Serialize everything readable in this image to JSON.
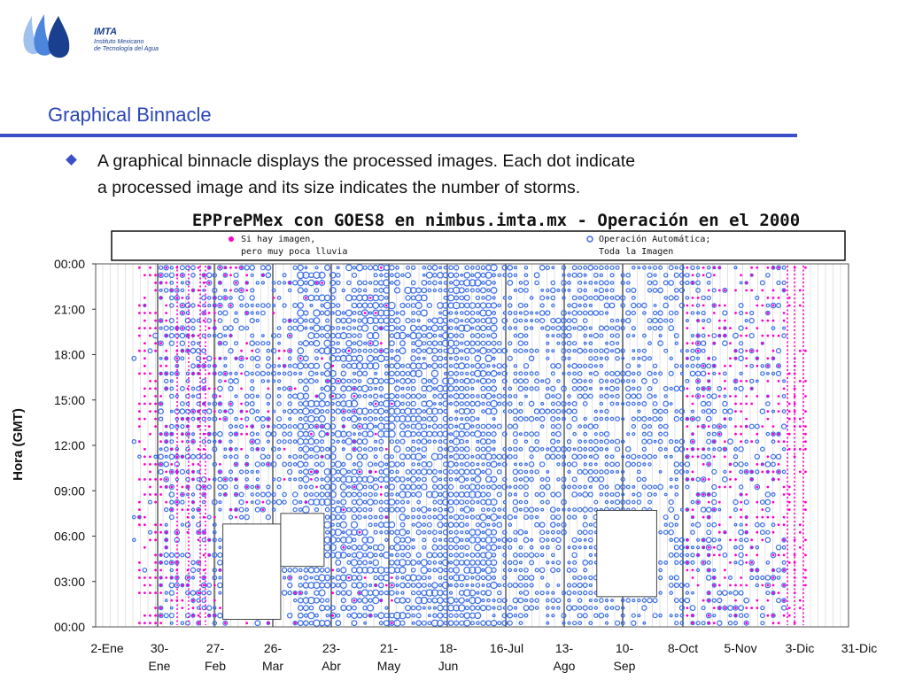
{
  "logo": {
    "name": "IMTA",
    "subtitle_line1": "Instituto Mexicano",
    "subtitle_line2": "de Tecnología del Agua",
    "color": "#1a3f8f"
  },
  "slide": {
    "title": "Graphical Binnacle",
    "bullet_line1": "A graphical binnacle displays the processed images. Each dot indicate",
    "bullet_line2": "a processed image and its size indicates the number of storms.",
    "accent_color": "#3b4fc9"
  },
  "chart_data": {
    "type": "scatter",
    "title": "EPPrePMex con GOES8 en nimbus.imta.mx - Operación en el 2000",
    "ylabel": "Hora (GMT)",
    "xlabel": "",
    "y_ticks": [
      "00:00",
      "21:00",
      "18:00",
      "15:00",
      "12:00",
      "09:00",
      "06:00",
      "03:00",
      "00:00"
    ],
    "y_range_hours": [
      0,
      24
    ],
    "x_ticks": [
      {
        "line1": "2-Ene",
        "line2": ""
      },
      {
        "line1": "30-",
        "line2": "Ene"
      },
      {
        "line1": "27-",
        "line2": "Feb"
      },
      {
        "line1": "26-",
        "line2": "Mar"
      },
      {
        "line1": "23-",
        "line2": "Abr"
      },
      {
        "line1": "21-",
        "line2": "May"
      },
      {
        "line1": "18-",
        "line2": "Jun"
      },
      {
        "line1": "16-Jul",
        "line2": ""
      },
      {
        "line1": "13-",
        "line2": "Ago"
      },
      {
        "line1": "10-",
        "line2": "Sep"
      },
      {
        "line1": "8-Oct",
        "line2": ""
      },
      {
        "line1": "5-Nov",
        "line2": ""
      },
      {
        "line1": "3-Dic",
        "line2": ""
      },
      {
        "line1": "31-Dic",
        "line2": ""
      }
    ],
    "x_range_days": [
      0,
      364
    ],
    "grid": "vertical",
    "legend": {
      "placement": "top",
      "entries": [
        {
          "line1": "Si hay imagen,",
          "line2": "pero muy poca lluvia",
          "color": "#ff00cc",
          "marker": "filled-dot"
        },
        {
          "line1": "Operación Automática;",
          "line2": "Toda la Imagen",
          "color": "#3a6ee8",
          "marker": "hollow-circle"
        }
      ]
    },
    "series": [
      {
        "marker": "hollow-circle",
        "color": "#3a6ee8",
        "density_periods_days": [
          {
            "start": 10,
            "end": 24,
            "density": 0.05
          },
          {
            "start": 24,
            "end": 91,
            "density": 0.55
          },
          {
            "start": 91,
            "end": 160,
            "density": 0.82
          },
          {
            "start": 160,
            "end": 175,
            "density": 0.95
          },
          {
            "start": 175,
            "end": 189,
            "density": 0.93
          },
          {
            "start": 189,
            "end": 224,
            "density": 0.62
          },
          {
            "start": 224,
            "end": 248,
            "density": 0.7
          },
          {
            "start": 248,
            "end": 296,
            "density": 0.55
          },
          {
            "start": 296,
            "end": 328,
            "density": 0.3
          }
        ]
      },
      {
        "marker": "filled-dot",
        "color": "#ff00cc",
        "density_periods_days": [
          {
            "start": 14,
            "end": 30,
            "density": 0.55
          },
          {
            "start": 30,
            "end": 70,
            "density": 0.3
          },
          {
            "start": 70,
            "end": 140,
            "density": 0.08
          },
          {
            "start": 280,
            "end": 340,
            "density": 0.35
          }
        ]
      }
    ],
    "gaps": [
      {
        "start_day": 56,
        "end_day": 84,
        "from_hour": 0.5,
        "to_hour": 6.8
      },
      {
        "start_day": 84,
        "end_day": 105,
        "from_hour": 4.0,
        "to_hour": 7.5
      },
      {
        "start_day": 237,
        "end_day": 266,
        "from_hour": 2.0,
        "to_hour": 7.7
      }
    ]
  }
}
